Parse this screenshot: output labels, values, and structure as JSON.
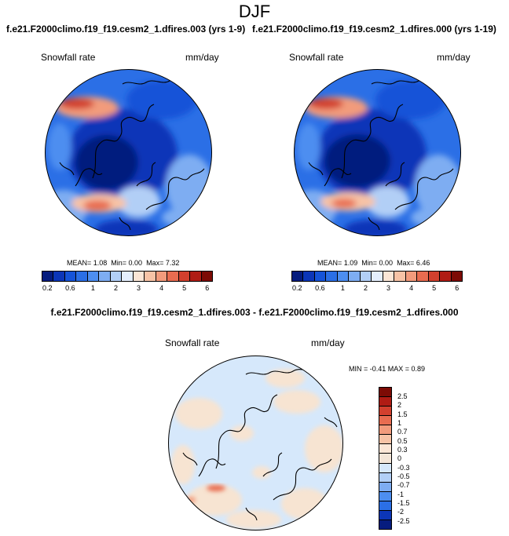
{
  "title": "DJF",
  "panels": [
    {
      "case": "f.e21.F2000climo.f19_f19.cesm2_1.dfires.003 (yrs 1-9)",
      "variable": "Snowfall rate",
      "units": "mm/day",
      "stats": {
        "mean": "MEAN=  1.08",
        "min": "Min=  0.00",
        "max": "Max=  7.32"
      }
    },
    {
      "case": "f.e21.F2000climo.f19_f19.cesm2_1.dfires.000 (yrs 1-19)",
      "variable": "Snowfall rate",
      "units": "mm/day",
      "stats": {
        "mean": "MEAN=  1.09",
        "min": "Min=  0.00",
        "max": "Max=  6.46"
      }
    }
  ],
  "colorbar": {
    "colors": [
      "#061c7e",
      "#0c36b8",
      "#1553d8",
      "#2b6fe6",
      "#4d8ef0",
      "#7eadf2",
      "#b2cff6",
      "#e4eefc",
      "#fbe6d6",
      "#f7c3a6",
      "#f29b7c",
      "#e86c50",
      "#d2402e",
      "#b01c14",
      "#7d0b05"
    ],
    "tick_labels": [
      "0.2",
      "0.6",
      "1",
      "2",
      "3",
      "4",
      "5",
      "6"
    ]
  },
  "difference": {
    "title": "f.e21.F2000climo.f19_f19.cesm2_1.dfires.003 - f.e21.F2000climo.f19_f19.cesm2_1.dfires.000",
    "variable": "Snowfall rate",
    "units": "mm/day",
    "stats": "MIN =  -0.41 MAX =   0.89",
    "colorbar": {
      "colors": [
        "#7d0b05",
        "#b01c14",
        "#d2402e",
        "#e86c50",
        "#f29b7c",
        "#f7c3a6",
        "#fbe6d6",
        "#f4e6d8",
        "#d6e8fb",
        "#b2cff6",
        "#7eadf2",
        "#4d8ef0",
        "#2b6fe6",
        "#0c36b8",
        "#061c7e"
      ],
      "tick_labels": [
        "2.5",
        "2",
        "1.5",
        "1",
        "0.7",
        "0.5",
        "0.3",
        "0",
        "-0.3",
        "-0.5",
        "-0.7",
        "-1",
        "-1.5",
        "-2",
        "-2.5"
      ]
    }
  }
}
